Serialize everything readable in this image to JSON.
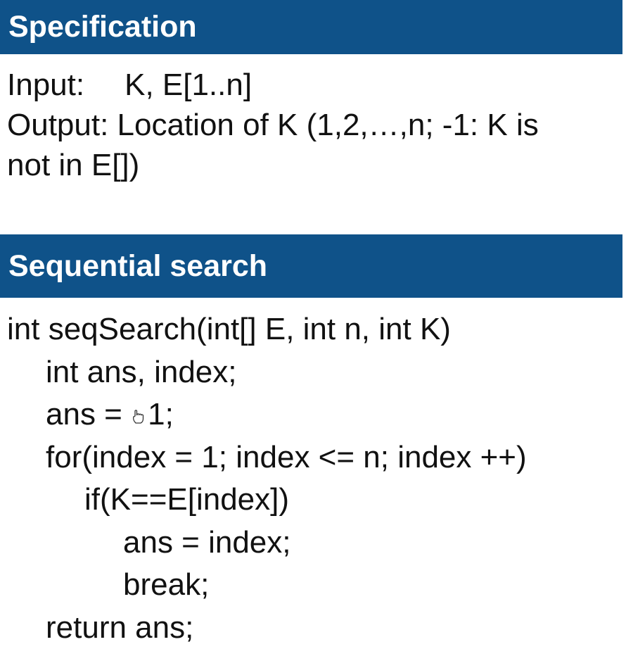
{
  "specification": {
    "header": "Specification",
    "input_label": "Input:",
    "input_value": "K, E[1..n]",
    "output_line1": "Output: Location of K (1,2,…,n; -1: K is",
    "output_line2": "not in E[])"
  },
  "sequential_search": {
    "header": "Sequential search",
    "lines": [
      "int seqSearch(int[] E, int n, int K)",
      "int ans, index;",
      "ans = ",
      "1;",
      "for(index = 1; index <= n; index ++)",
      "if(K==E[index])",
      "ans = index;",
      "break;",
      "return ans;"
    ]
  },
  "icons": {
    "cursor": "hand-cursor-icon"
  }
}
